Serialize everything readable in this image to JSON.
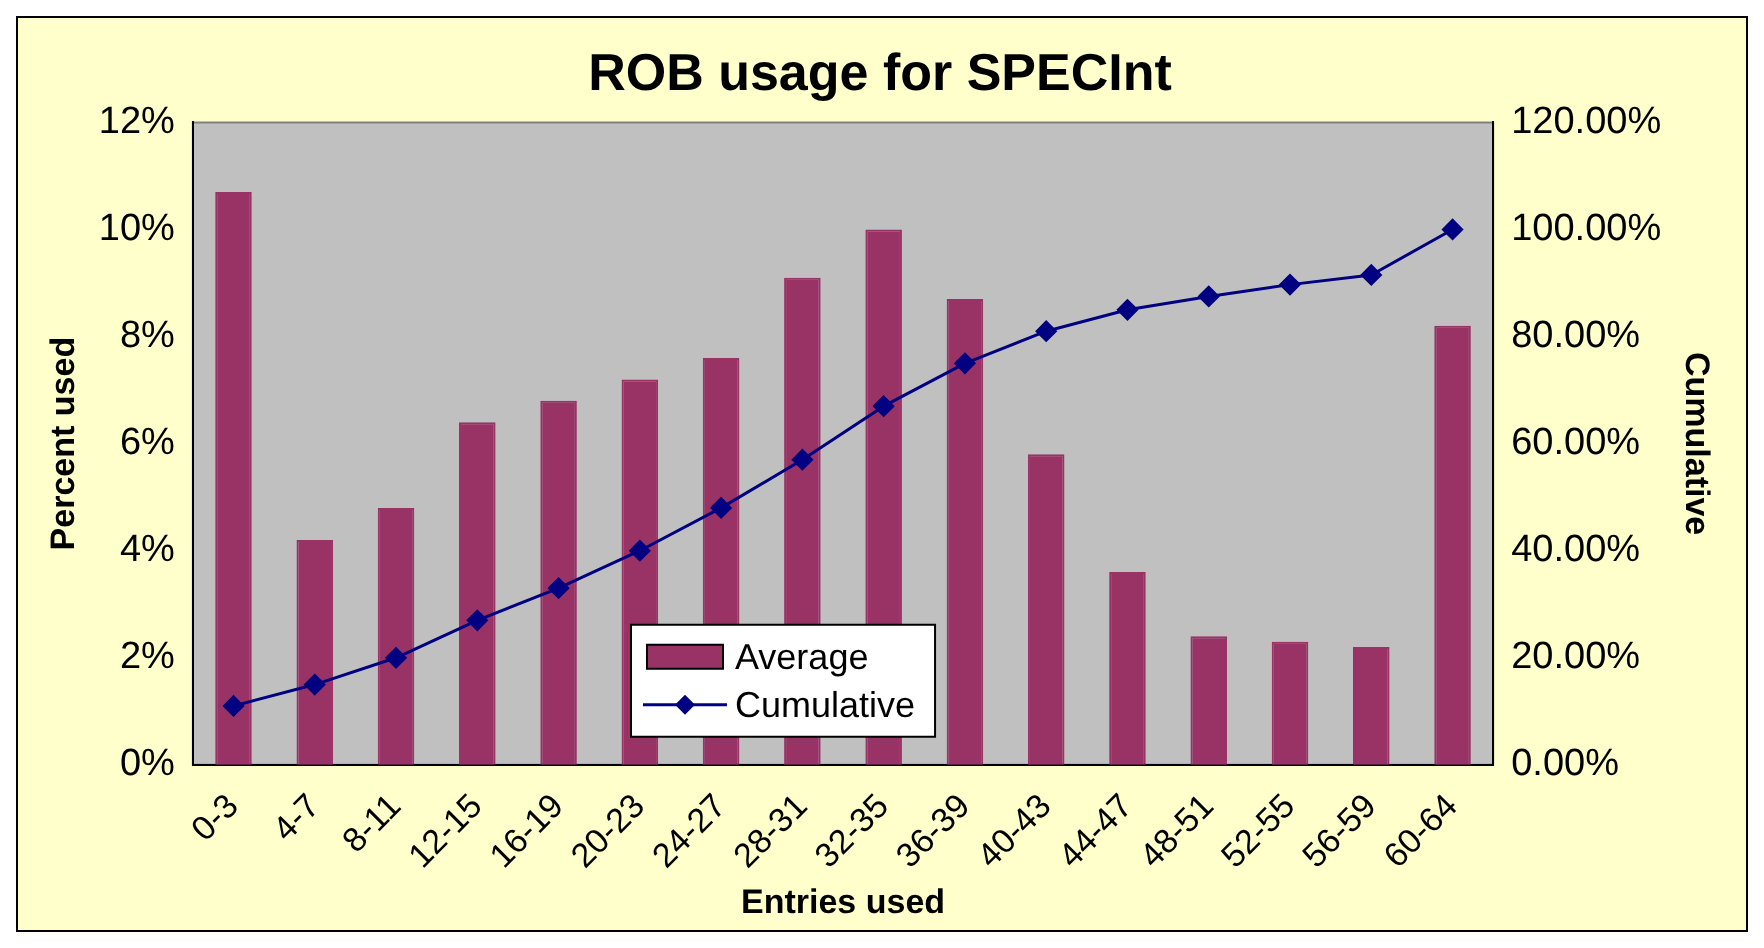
{
  "chart_data": {
    "type": "bar",
    "title": "ROB usage for SPECInt",
    "xlabel": "Entries used",
    "ylabel": "Percent used",
    "y2label": "Cumulative",
    "categories": [
      "0-3",
      "4-7",
      "8-11",
      "12-15",
      "16-19",
      "20-23",
      "24-27",
      "28-31",
      "32-35",
      "36-39",
      "40-43",
      "44-47",
      "48-51",
      "52-55",
      "56-59",
      "60-64"
    ],
    "series": [
      {
        "name": "Average",
        "color": "#993366",
        "values": [
          10.7,
          4.2,
          4.8,
          6.4,
          6.8,
          7.2,
          7.6,
          9.1,
          10.0,
          8.7,
          5.8,
          3.6,
          2.4,
          2.3,
          2.2,
          8.2
        ]
      },
      {
        "name": "Cumulative",
        "type": "line",
        "axis": "y2",
        "color": "#000080",
        "marker": "diamond",
        "values": [
          11,
          15,
          20,
          27,
          33,
          40,
          48,
          57,
          67,
          75,
          81,
          85,
          87.5,
          89.7,
          91.5,
          100
        ]
      }
    ],
    "ylim": [
      0,
      12
    ],
    "yticks": [
      {
        "value": 0,
        "label": "0%"
      },
      {
        "value": 2,
        "label": "2%"
      },
      {
        "value": 4,
        "label": "4%"
      },
      {
        "value": 6,
        "label": "6%"
      },
      {
        "value": 8,
        "label": "8%"
      },
      {
        "value": 10,
        "label": "10%"
      },
      {
        "value": 12,
        "label": "12%"
      }
    ],
    "y2lim": [
      0,
      120
    ],
    "y2ticks": [
      {
        "value": 0,
        "label": "0.00%"
      },
      {
        "value": 20,
        "label": "20.00%"
      },
      {
        "value": 40,
        "label": "40.00%"
      },
      {
        "value": 60,
        "label": "60.00%"
      },
      {
        "value": 80,
        "label": "80.00%"
      },
      {
        "value": 100,
        "label": "100.00%"
      },
      {
        "value": 120,
        "label": "120.00%"
      }
    ],
    "grid": false,
    "legend": "bottom"
  }
}
